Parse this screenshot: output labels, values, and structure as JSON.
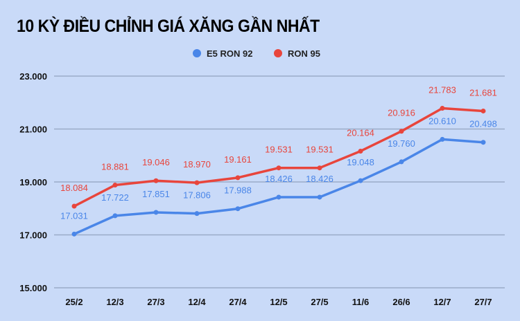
{
  "chart_data": {
    "type": "line",
    "title": "10 KỲ ĐIỀU CHỈNH GIÁ XĂNG GẦN NHẤT",
    "categories": [
      "25/2",
      "12/3",
      "27/3",
      "12/4",
      "27/4",
      "12/5",
      "27/5",
      "11/6",
      "26/6",
      "12/7",
      "27/7"
    ],
    "series": [
      {
        "name": "E5 RON 92",
        "color": "#4a86e8",
        "values": [
          17031,
          17722,
          17851,
          17806,
          17988,
          18426,
          18426,
          19048,
          19760,
          20610,
          20498
        ],
        "labels": [
          "17.031",
          "17.722",
          "17.851",
          "17.806",
          "17.988",
          "18.426",
          "18.426",
          "19.048",
          "19.760",
          "20.610",
          "20.498"
        ]
      },
      {
        "name": "RON 95",
        "color": "#e8453c",
        "values": [
          18084,
          18881,
          19046,
          18970,
          19161,
          19531,
          19531,
          20164,
          20916,
          21783,
          21681
        ],
        "labels": [
          "18.084",
          "18.881",
          "19.046",
          "18.970",
          "19.161",
          "19.531",
          "19.531",
          "20.164",
          "20.916",
          "21.783",
          "21.681"
        ]
      }
    ],
    "ylim": [
      15000,
      23000
    ],
    "yticks": [
      15000,
      17000,
      19000,
      21000,
      23000
    ],
    "ytick_labels": [
      "15.000",
      "17.000",
      "19.000",
      "21.000",
      "23.000"
    ],
    "grid": true,
    "legend": "top-center",
    "xlabel": "",
    "ylabel": ""
  }
}
